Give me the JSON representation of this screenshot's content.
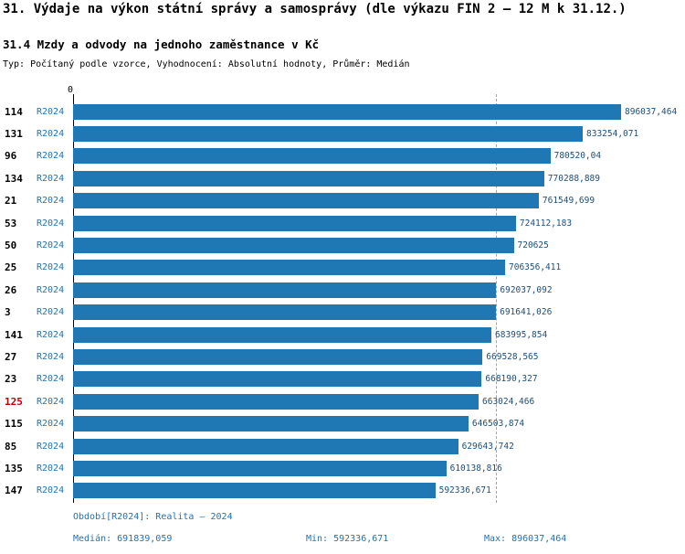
{
  "header": {
    "title": "31. Výdaje na výkon státní správy a samosprávy (dle výkazu FIN 2 – 12 M k 31.12.)",
    "subtitle": "31.4 Mzdy a odvody na jednoho zaměstnance v Kč",
    "meta": "Typ: Počítaný podle vzorce, Vyhodnocení: Absolutní hodnoty, Průměr: Medián"
  },
  "chart_data": {
    "type": "bar",
    "orientation": "horizontal",
    "x_origin_label": "0",
    "period_label": "R2024",
    "categories": [
      "114",
      "131",
      "96",
      "134",
      "21",
      "53",
      "50",
      "25",
      "26",
      "3",
      "141",
      "27",
      "23",
      "125",
      "115",
      "85",
      "135",
      "147"
    ],
    "values": [
      896037.464,
      833254.071,
      780520.04,
      770288.889,
      761549.699,
      724112.183,
      720625,
      706356.411,
      692037.092,
      691641.026,
      683995.854,
      669528.565,
      668190.327,
      663024.466,
      646503.874,
      629643.742,
      610138.816,
      592336.671
    ],
    "value_labels": [
      "896037,464",
      "833254,071",
      "780520,04",
      "770288,889",
      "761549,699",
      "724112,183",
      "720625",
      "706356,411",
      "692037,092",
      "691641,026",
      "683995,854",
      "669528,565",
      "668190,327",
      "663024,466",
      "646503,874",
      "629643,742",
      "610138,816",
      "592336,671"
    ],
    "highlight_category": "125",
    "median": 691839.059,
    "xlim": [
      0,
      896037.464
    ],
    "grid": false,
    "legend": "none",
    "bar_color": "#1f77b4",
    "highlight_color": "#c00000",
    "period_color": "#2373b3",
    "value_color": "#1f4e79"
  },
  "footer": {
    "period_line": "Období[R2024]: Realita – 2024",
    "median_label": "Medián: 691839,059",
    "min_label": "Min: 592336,671",
    "max_label": "Max: 896037,464"
  }
}
